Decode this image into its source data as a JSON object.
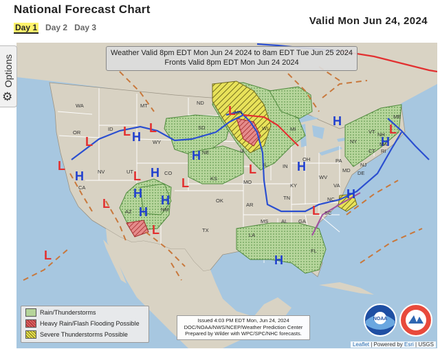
{
  "header": {
    "title": "National Forecast Chart",
    "valid": "Valid Mon Jun 24, 2024"
  },
  "tabs": [
    "Day 1",
    "Day 2",
    "Day 3"
  ],
  "options": {
    "label": "Options",
    "icon": "gear-icon"
  },
  "weather_box": {
    "line1": "Weather Valid 8pm EDT Mon Jun 24 2024 to 8am EDT Tue Jun 25 2024",
    "line2": "Fronts Valid 8pm EDT Mon Jun 24 2024"
  },
  "legend": {
    "items": [
      "Rain/Thunderstorms",
      "Heavy Rain/Flash Flooding Possible",
      "Severe Thunderstorms Possible"
    ],
    "colors": [
      "#b5d49a",
      "#d86060",
      "#e7e04c"
    ]
  },
  "issued": {
    "line1": "Issued  4:03 PM EDT  Mon, Jun 24, 2024",
    "line2": "DOC/NOAA/NWS/NCEP/Weather Prediction Center",
    "line3": "Prepared by Wilder with WPC/SPC/NHC forecasts."
  },
  "attribution": {
    "leaflet": "Leaflet",
    "sep": " | Powered by ",
    "esri": "Esri",
    "tail": " | USGS"
  },
  "logos": {
    "noaa": "NOAA",
    "nws": "NATIONAL WEATHER SERVICE"
  },
  "states": [
    "WA",
    "OR",
    "ID",
    "MT",
    "ND",
    "SD",
    "WY",
    "NE",
    "MN",
    "WI",
    "MI",
    "IA",
    "IL",
    "IN",
    "OH",
    "PA",
    "NY",
    "VT",
    "NH",
    "ME",
    "MA",
    "CT",
    "RI",
    "NJ",
    "DE",
    "MD",
    "WV",
    "VA",
    "KY",
    "TN",
    "NC",
    "SC",
    "GA",
    "AL",
    "MS",
    "LA",
    "AR",
    "MO",
    "KS",
    "OK",
    "TX",
    "NM",
    "AZ",
    "UT",
    "NV",
    "CA",
    "CO",
    "FL"
  ],
  "pressure_centers": {
    "highs": 12,
    "lows": 14,
    "high_label": "H",
    "low_label": "L"
  }
}
